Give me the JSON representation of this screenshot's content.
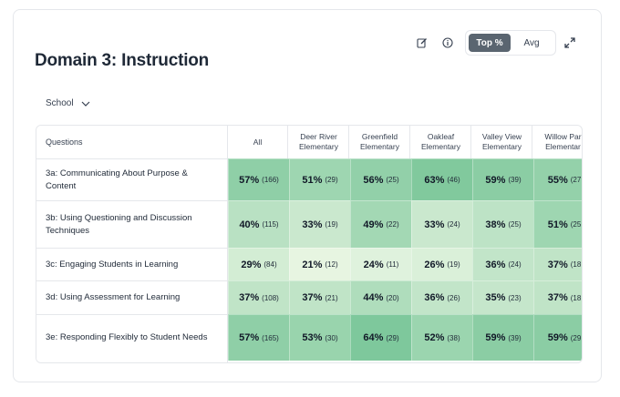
{
  "title": "Domain 3: Instruction",
  "toolbar": {
    "edit_icon": "edit-icon",
    "info_icon": "info-icon",
    "expand_icon": "expand-icon",
    "toggle": {
      "top_label": "Top %",
      "avg_label": "Avg",
      "selected": "Top %"
    }
  },
  "filter": {
    "label": "School",
    "icon": "chevron-down-icon"
  },
  "table": {
    "questions_header": "Questions",
    "columns": [
      {
        "line1": "All",
        "line2": ""
      },
      {
        "line1": "Deer River",
        "line2": "Elementary"
      },
      {
        "line1": "Greenfield",
        "line2": "Elementary"
      },
      {
        "line1": "Oakleaf",
        "line2": "Elementary"
      },
      {
        "line1": "Valley View",
        "line2": "Elementary"
      },
      {
        "line1": "Willow Par",
        "line2": "Elementar"
      }
    ],
    "rows": [
      {
        "question": "3a: Communicating About Purpose & Content",
        "cells": [
          {
            "pct": "57%",
            "n": "(166)",
            "v": 57
          },
          {
            "pct": "51%",
            "n": "(29)",
            "v": 51
          },
          {
            "pct": "56%",
            "n": "(25)",
            "v": 56
          },
          {
            "pct": "63%",
            "n": "(46)",
            "v": 63
          },
          {
            "pct": "59%",
            "n": "(39)",
            "v": 59
          },
          {
            "pct": "55%",
            "n": "(27",
            "v": 55
          }
        ]
      },
      {
        "question": "3b: Using Questioning and Discussion Techniques",
        "cells": [
          {
            "pct": "40%",
            "n": "(115)",
            "v": 40
          },
          {
            "pct": "33%",
            "n": "(19)",
            "v": 33
          },
          {
            "pct": "49%",
            "n": "(22)",
            "v": 49
          },
          {
            "pct": "33%",
            "n": "(24)",
            "v": 33
          },
          {
            "pct": "38%",
            "n": "(25)",
            "v": 38
          },
          {
            "pct": "51%",
            "n": "(25",
            "v": 51
          }
        ]
      },
      {
        "question": "3c: Engaging Students in Learning",
        "cells": [
          {
            "pct": "29%",
            "n": "(84)",
            "v": 29
          },
          {
            "pct": "21%",
            "n": "(12)",
            "v": 21
          },
          {
            "pct": "24%",
            "n": "(11)",
            "v": 24
          },
          {
            "pct": "26%",
            "n": "(19)",
            "v": 26
          },
          {
            "pct": "36%",
            "n": "(24)",
            "v": 36
          },
          {
            "pct": "37%",
            "n": "(18",
            "v": 37
          }
        ]
      },
      {
        "question": "3d: Using Assessment for Learning",
        "cells": [
          {
            "pct": "37%",
            "n": "(108)",
            "v": 37
          },
          {
            "pct": "37%",
            "n": "(21)",
            "v": 37
          },
          {
            "pct": "44%",
            "n": "(20)",
            "v": 44
          },
          {
            "pct": "36%",
            "n": "(26)",
            "v": 36
          },
          {
            "pct": "35%",
            "n": "(23)",
            "v": 35
          },
          {
            "pct": "37%",
            "n": "(18",
            "v": 37
          }
        ]
      },
      {
        "question": "3e: Responding Flexibly to Student Needs",
        "cells": [
          {
            "pct": "57%",
            "n": "(165)",
            "v": 57
          },
          {
            "pct": "53%",
            "n": "(30)",
            "v": 53
          },
          {
            "pct": "64%",
            "n": "(29)",
            "v": 64
          },
          {
            "pct": "52%",
            "n": "(38)",
            "v": 52
          },
          {
            "pct": "59%",
            "n": "(39)",
            "v": 59
          },
          {
            "pct": "59%",
            "n": "(29",
            "v": 59
          }
        ]
      }
    ]
  },
  "colors": {
    "heat_low": "#e9f6e3",
    "heat_high": "#7cc79a",
    "toggle_active": "#5a6570"
  }
}
